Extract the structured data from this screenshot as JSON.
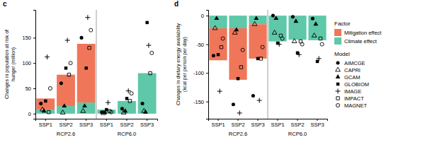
{
  "chart_data": [
    {
      "type": "bar",
      "title": "c",
      "stacked": true,
      "grid": false,
      "ylabel": "Changes in population at risk of hunger (million)",
      "categories": [
        "SSP1",
        "SSP2",
        "SSP3",
        "SSP1",
        "SSP2",
        "SSP3"
      ],
      "category_groups": [
        {
          "label": "RCP2.6",
          "size": 3
        },
        {
          "label": "RCP6.0",
          "size": 3
        }
      ],
      "ylim": [
        -10,
        205
      ],
      "yticks": [
        0,
        50,
        100,
        150
      ],
      "series": [
        {
          "name": "Mitigation effect",
          "type": "bar",
          "color": "#f0765a",
          "values": [
            22,
            62,
            116,
            0,
            0,
            0
          ]
        },
        {
          "name": "Climate effect",
          "type": "bar",
          "color": "#5ec8a8",
          "values": [
            8,
            15,
            22,
            8,
            25,
            80
          ]
        },
        {
          "name": "AIMCGE",
          "type": "scatter",
          "marker": "circle",
          "color": "#000000",
          "values": [
            20,
            60,
            150,
            3,
            10,
            20
          ]
        },
        {
          "name": "CAPRI",
          "type": "scatter",
          "marker": "triangle-open",
          "color": "#000000",
          "values": [
            8,
            2,
            5,
            1,
            2,
            5
          ]
        },
        {
          "name": "GCAM",
          "type": "scatter",
          "marker": "triangle",
          "color": "#000000",
          "values": [
            5,
            15,
            15,
            2,
            5,
            3
          ]
        },
        {
          "name": "GLOBIOM",
          "type": "scatter",
          "marker": "square",
          "color": "#000000",
          "values": [
            25,
            90,
            90,
            8,
            30,
            180
          ]
        },
        {
          "name": "IMAGE",
          "type": "scatter",
          "marker": "plus",
          "color": "#000000",
          "values": [
            112,
            145,
            190,
            22,
            45,
            135
          ]
        },
        {
          "name": "IMPACT",
          "type": "scatter",
          "marker": "square-open",
          "color": "#000000",
          "values": [
            3,
            77,
            130,
            5,
            25,
            80
          ]
        },
        {
          "name": "MAGNET",
          "type": "scatter",
          "marker": "circle-open",
          "color": "#000000",
          "values": [
            50,
            100,
            165,
            3,
            40,
            120
          ]
        }
      ]
    },
    {
      "type": "bar",
      "title": "d",
      "stacked": true,
      "grid": false,
      "legend": "right",
      "ylabel": "Changes in dietary energy availability (kcal per person per day)",
      "categories": [
        "SSP1",
        "SSP2",
        "SSP3",
        "SSP1",
        "SSP2",
        "SSP3"
      ],
      "category_groups": [
        {
          "label": "RCP2.6",
          "size": 3
        },
        {
          "label": "RCP6.0",
          "size": 3
        }
      ],
      "ylim": [
        -180,
        10
      ],
      "yticks": [
        -150,
        -100,
        -50,
        0
      ],
      "legend_groups": [
        {
          "title": "Factor",
          "series": [
            0,
            1
          ]
        },
        {
          "title": "Model",
          "series": [
            2,
            3,
            4,
            5,
            6,
            7,
            8
          ]
        }
      ],
      "series": [
        {
          "name": "Mitigation effect",
          "type": "bar",
          "color": "#f0765a",
          "values": [
            -56,
            -90,
            -60,
            0,
            0,
            0
          ]
        },
        {
          "name": "Climate effect",
          "type": "bar",
          "color": "#5ec8a8",
          "values": [
            -22,
            -22,
            -15,
            -45,
            -42,
            -43
          ]
        },
        {
          "name": "AIMCGE",
          "type": "scatter",
          "marker": "circle",
          "color": "#000000",
          "values": [
            -70,
            -155,
            -140,
            0,
            -2,
            -5
          ]
        },
        {
          "name": "CAPRI",
          "type": "scatter",
          "marker": "triangle-open",
          "color": "#000000",
          "values": [
            -22,
            -30,
            -15,
            -30,
            -45,
            -35
          ]
        },
        {
          "name": "GCAM",
          "type": "scatter",
          "marker": "triangle",
          "color": "#000000",
          "values": [
            -5,
            -25,
            -5,
            -5,
            -10,
            -15
          ]
        },
        {
          "name": "GLOBIOM",
          "type": "scatter",
          "marker": "square",
          "color": "#000000",
          "values": [
            -68,
            -110,
            -75,
            -48,
            -65,
            -80
          ]
        },
        {
          "name": "IMAGE",
          "type": "scatter",
          "marker": "plus",
          "color": "#000000",
          "values": [
            -132,
            -170,
            -148,
            -50,
            -68,
            -75
          ]
        },
        {
          "name": "IMPACT",
          "type": "scatter",
          "marker": "square-open",
          "color": "#000000",
          "values": [
            -55,
            -90,
            -75,
            -35,
            -45,
            -40
          ]
        },
        {
          "name": "MAGNET",
          "type": "scatter",
          "marker": "circle-open",
          "color": "#000000",
          "values": [
            -40,
            -60,
            -55,
            -40,
            -50,
            -50
          ]
        }
      ]
    }
  ]
}
